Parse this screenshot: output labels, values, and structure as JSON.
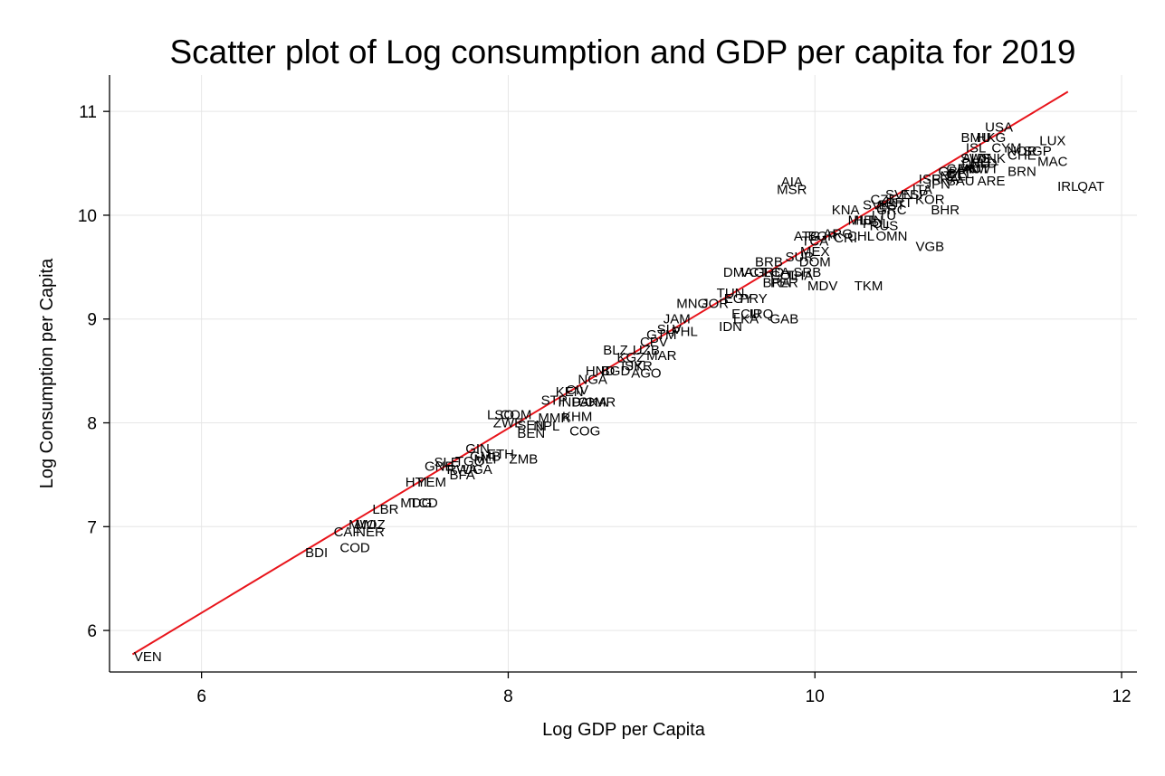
{
  "chart_data": {
    "type": "scatter",
    "title": "Scatter plot of Log consumption and GDP per capita for 2019",
    "xlabel": "Log GDP per Capita",
    "ylabel": "Log Consumption per Capita",
    "xlim": [
      5.4,
      12.1
    ],
    "ylim": [
      5.6,
      11.35
    ],
    "xticks": [
      6,
      8,
      10,
      12
    ],
    "yticks": [
      6,
      7,
      8,
      9,
      10,
      11
    ],
    "grid": true,
    "legend": "none",
    "colors": {
      "points": "#000000",
      "fit_line": "#e8141b",
      "grid": "#e6e6e6",
      "axis": "#000000"
    },
    "fit_line": {
      "x": [
        5.55,
        11.65
      ],
      "y": [
        5.77,
        11.19
      ]
    },
    "points": [
      {
        "label": "VEN",
        "x": 5.65,
        "y": 5.75
      },
      {
        "label": "BDI",
        "x": 6.75,
        "y": 6.75
      },
      {
        "label": "COD",
        "x": 7.0,
        "y": 6.8
      },
      {
        "label": "CAF",
        "x": 6.95,
        "y": 6.95
      },
      {
        "label": "NER",
        "x": 7.1,
        "y": 6.95
      },
      {
        "label": "MWI",
        "x": 7.05,
        "y": 7.02
      },
      {
        "label": "MOZ",
        "x": 7.1,
        "y": 7.02
      },
      {
        "label": "LBR",
        "x": 7.2,
        "y": 7.17
      },
      {
        "label": "MDG",
        "x": 7.4,
        "y": 7.23
      },
      {
        "label": "TCD",
        "x": 7.45,
        "y": 7.23
      },
      {
        "label": "HTI",
        "x": 7.4,
        "y": 7.43
      },
      {
        "label": "YEM",
        "x": 7.5,
        "y": 7.43
      },
      {
        "label": "GNB",
        "x": 7.55,
        "y": 7.58
      },
      {
        "label": "SLE",
        "x": 7.6,
        "y": 7.62
      },
      {
        "label": "BFA",
        "x": 7.7,
        "y": 7.5
      },
      {
        "label": "RWA",
        "x": 7.7,
        "y": 7.55
      },
      {
        "label": "UGA",
        "x": 7.8,
        "y": 7.55
      },
      {
        "label": "TGO",
        "x": 7.75,
        "y": 7.63
      },
      {
        "label": "GIN",
        "x": 7.8,
        "y": 7.75
      },
      {
        "label": "MLI",
        "x": 7.85,
        "y": 7.65
      },
      {
        "label": "ETH",
        "x": 7.95,
        "y": 7.7
      },
      {
        "label": "GMB",
        "x": 7.85,
        "y": 7.68
      },
      {
        "label": "ZMB",
        "x": 8.1,
        "y": 7.65
      },
      {
        "label": "LSO",
        "x": 7.95,
        "y": 8.08
      },
      {
        "label": "COM",
        "x": 8.05,
        "y": 8.08
      },
      {
        "label": "ZWE",
        "x": 8.0,
        "y": 8.0
      },
      {
        "label": "SEN",
        "x": 8.15,
        "y": 7.98
      },
      {
        "label": "BEN",
        "x": 8.15,
        "y": 7.9
      },
      {
        "label": "NPL",
        "x": 8.25,
        "y": 7.97
      },
      {
        "label": "MMR",
        "x": 8.3,
        "y": 8.05
      },
      {
        "label": "COG",
        "x": 8.5,
        "y": 7.92
      },
      {
        "label": "STP",
        "x": 8.3,
        "y": 8.22
      },
      {
        "label": "KEN",
        "x": 8.4,
        "y": 8.3
      },
      {
        "label": "IND",
        "x": 8.4,
        "y": 8.2
      },
      {
        "label": "CIV",
        "x": 8.45,
        "y": 8.32
      },
      {
        "label": "KHM",
        "x": 8.45,
        "y": 8.06
      },
      {
        "label": "PAK",
        "x": 8.5,
        "y": 8.2
      },
      {
        "label": "GHA",
        "x": 8.55,
        "y": 8.2
      },
      {
        "label": "CMR",
        "x": 8.6,
        "y": 8.2
      },
      {
        "label": "NGA",
        "x": 8.55,
        "y": 8.42
      },
      {
        "label": "HND",
        "x": 8.6,
        "y": 8.5
      },
      {
        "label": "BGD",
        "x": 8.7,
        "y": 8.5
      },
      {
        "label": "AGO",
        "x": 8.9,
        "y": 8.48
      },
      {
        "label": "BLZ",
        "x": 8.7,
        "y": 8.7
      },
      {
        "label": "KGZ",
        "x": 8.8,
        "y": 8.63
      },
      {
        "label": "TJK",
        "x": 8.8,
        "y": 8.55
      },
      {
        "label": "SYR",
        "x": 8.85,
        "y": 8.55
      },
      {
        "label": "UZB",
        "x": 8.9,
        "y": 8.7
      },
      {
        "label": "MAR",
        "x": 9.0,
        "y": 8.65
      },
      {
        "label": "CPV",
        "x": 8.95,
        "y": 8.78
      },
      {
        "label": "GTM",
        "x": 9.0,
        "y": 8.85
      },
      {
        "label": "SLV",
        "x": 9.05,
        "y": 8.9
      },
      {
        "label": "JAM",
        "x": 9.1,
        "y": 9.0
      },
      {
        "label": "PHL",
        "x": 9.15,
        "y": 8.88
      },
      {
        "label": "MNG",
        "x": 9.2,
        "y": 9.15
      },
      {
        "label": "JOR",
        "x": 9.35,
        "y": 9.15
      },
      {
        "label": "TUN",
        "x": 9.45,
        "y": 9.25
      },
      {
        "label": "EGY",
        "x": 9.5,
        "y": 9.2
      },
      {
        "label": "IDN",
        "x": 9.45,
        "y": 8.93
      },
      {
        "label": "LKA",
        "x": 9.55,
        "y": 9.0
      },
      {
        "label": "ECU",
        "x": 9.55,
        "y": 9.05
      },
      {
        "label": "IRQ",
        "x": 9.65,
        "y": 9.05
      },
      {
        "label": "GAB",
        "x": 9.8,
        "y": 9.0
      },
      {
        "label": "PRY",
        "x": 9.6,
        "y": 9.2
      },
      {
        "label": "DMA",
        "x": 9.5,
        "y": 9.45
      },
      {
        "label": "VCT",
        "x": 9.6,
        "y": 9.45
      },
      {
        "label": "GRD",
        "x": 9.7,
        "y": 9.45
      },
      {
        "label": "BRB",
        "x": 9.7,
        "y": 9.55
      },
      {
        "label": "LCA",
        "x": 9.75,
        "y": 9.45
      },
      {
        "label": "COL",
        "x": 9.8,
        "y": 9.42
      },
      {
        "label": "PER",
        "x": 9.8,
        "y": 9.35
      },
      {
        "label": "BRA",
        "x": 9.75,
        "y": 9.35
      },
      {
        "label": "THA",
        "x": 9.9,
        "y": 9.42
      },
      {
        "label": "SRB",
        "x": 9.95,
        "y": 9.45
      },
      {
        "label": "DOM",
        "x": 10.0,
        "y": 9.55
      },
      {
        "label": "MEX",
        "x": 10.0,
        "y": 9.65
      },
      {
        "label": "MDV",
        "x": 10.05,
        "y": 9.32
      },
      {
        "label": "TKM",
        "x": 10.35,
        "y": 9.32
      },
      {
        "label": "SUR",
        "x": 9.9,
        "y": 9.6
      },
      {
        "label": "ATG",
        "x": 9.95,
        "y": 9.8
      },
      {
        "label": "TCA",
        "x": 10.0,
        "y": 9.75
      },
      {
        "label": "BGR",
        "x": 10.05,
        "y": 9.8
      },
      {
        "label": "ARG",
        "x": 10.15,
        "y": 9.82
      },
      {
        "label": "CRI",
        "x": 10.2,
        "y": 9.78
      },
      {
        "label": "CHL",
        "x": 10.3,
        "y": 9.8
      },
      {
        "label": "OMN",
        "x": 10.5,
        "y": 9.8
      },
      {
        "label": "VGB",
        "x": 10.75,
        "y": 9.7
      },
      {
        "label": "AIA",
        "x": 9.85,
        "y": 10.32
      },
      {
        "label": "MSR",
        "x": 9.85,
        "y": 10.25
      },
      {
        "label": "KNA",
        "x": 10.2,
        "y": 10.05
      },
      {
        "label": "MLT",
        "x": 10.3,
        "y": 9.95
      },
      {
        "label": "HUN",
        "x": 10.35,
        "y": 9.95
      },
      {
        "label": "POL",
        "x": 10.4,
        "y": 9.92
      },
      {
        "label": "RUS",
        "x": 10.45,
        "y": 9.9
      },
      {
        "label": "LTU",
        "x": 10.45,
        "y": 10.0
      },
      {
        "label": "SVK",
        "x": 10.4,
        "y": 10.1
      },
      {
        "label": "CZE",
        "x": 10.45,
        "y": 10.15
      },
      {
        "label": "EST",
        "x": 10.5,
        "y": 10.1
      },
      {
        "label": "SVN",
        "x": 10.55,
        "y": 10.2
      },
      {
        "label": "PRT",
        "x": 10.55,
        "y": 10.12
      },
      {
        "label": "GRC",
        "x": 10.5,
        "y": 10.05
      },
      {
        "label": "ESP",
        "x": 10.65,
        "y": 10.2
      },
      {
        "label": "ITA",
        "x": 10.7,
        "y": 10.25
      },
      {
        "label": "KOR",
        "x": 10.75,
        "y": 10.15
      },
      {
        "label": "BHR",
        "x": 10.85,
        "y": 10.05
      },
      {
        "label": "ISR",
        "x": 10.75,
        "y": 10.35
      },
      {
        "label": "JPN",
        "x": 10.8,
        "y": 10.3
      },
      {
        "label": "FRA",
        "x": 10.85,
        "y": 10.35
      },
      {
        "label": "GBR",
        "x": 10.9,
        "y": 10.42
      },
      {
        "label": "NZL",
        "x": 10.9,
        "y": 10.38
      },
      {
        "label": "CAN",
        "x": 10.95,
        "y": 10.45
      },
      {
        "label": "BEL",
        "x": 10.95,
        "y": 10.4
      },
      {
        "label": "FIN",
        "x": 11.0,
        "y": 10.45
      },
      {
        "label": "SAU",
        "x": 10.95,
        "y": 10.33
      },
      {
        "label": "ARE",
        "x": 11.15,
        "y": 10.33
      },
      {
        "label": "DEU",
        "x": 11.05,
        "y": 10.5
      },
      {
        "label": "AUT",
        "x": 11.05,
        "y": 10.45
      },
      {
        "label": "SWE",
        "x": 11.05,
        "y": 10.55
      },
      {
        "label": "NLD",
        "x": 11.1,
        "y": 10.5
      },
      {
        "label": "KWT",
        "x": 11.1,
        "y": 10.45
      },
      {
        "label": "DNK",
        "x": 11.15,
        "y": 10.55
      },
      {
        "label": "AUS",
        "x": 11.05,
        "y": 10.55
      },
      {
        "label": "ISL",
        "x": 11.05,
        "y": 10.65
      },
      {
        "label": "CYM",
        "x": 11.25,
        "y": 10.65
      },
      {
        "label": "BMU",
        "x": 11.05,
        "y": 10.75
      },
      {
        "label": "HKG",
        "x": 11.15,
        "y": 10.75
      },
      {
        "label": "USA",
        "x": 11.2,
        "y": 10.85
      },
      {
        "label": "NOR",
        "x": 11.35,
        "y": 10.62
      },
      {
        "label": "SGP",
        "x": 11.45,
        "y": 10.62
      },
      {
        "label": "CHE",
        "x": 11.35,
        "y": 10.58
      },
      {
        "label": "LUX",
        "x": 11.55,
        "y": 10.72
      },
      {
        "label": "MAC",
        "x": 11.55,
        "y": 10.52
      },
      {
        "label": "BRN",
        "x": 11.35,
        "y": 10.42
      },
      {
        "label": "IRL",
        "x": 11.65,
        "y": 10.28
      },
      {
        "label": "QAT",
        "x": 11.8,
        "y": 10.28
      }
    ]
  }
}
